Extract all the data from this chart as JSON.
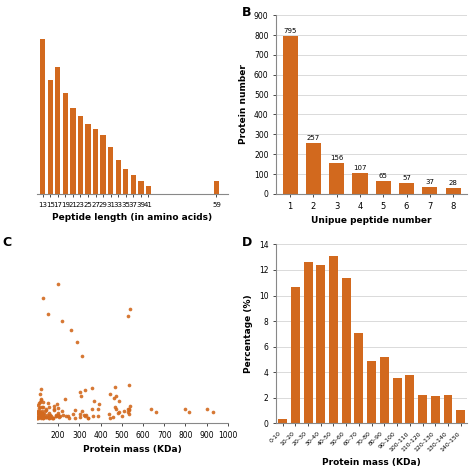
{
  "panel_A": {
    "xlabel": "Peptide length (in amino acids)",
    "bar_color": "#D2691E",
    "bar_x": [
      13,
      15,
      17,
      19,
      21,
      23,
      25,
      27,
      29,
      31,
      33,
      35,
      37,
      39,
      41,
      59
    ],
    "bar_heights": [
      1.0,
      0.73,
      0.82,
      0.65,
      0.55,
      0.5,
      0.45,
      0.42,
      0.38,
      0.3,
      0.22,
      0.16,
      0.12,
      0.08,
      0.05,
      0.08
    ],
    "tick_labels": [
      "13",
      "15",
      "17",
      "19",
      "21",
      "23",
      "25",
      "27",
      "29",
      "31",
      "33",
      "35",
      "37",
      "39",
      "41",
      "59"
    ]
  },
  "panel_B": {
    "label": "B",
    "xlabel": "Unipue peptide number",
    "ylabel": "Protein number",
    "bar_color": "#D2691E",
    "categories": [
      1,
      2,
      3,
      4,
      5,
      6,
      7,
      8
    ],
    "values": [
      795,
      257,
      156,
      107,
      65,
      57,
      37,
      28
    ],
    "ylim": [
      0,
      900
    ],
    "yticks": [
      0,
      100,
      200,
      300,
      400,
      500,
      600,
      700,
      800,
      900
    ]
  },
  "panel_C": {
    "label": "C",
    "xlabel": "Protein mass (KDa)",
    "dot_color": "#D2691E",
    "xticks": [
      200,
      300,
      400,
      500,
      600,
      700,
      800,
      900,
      1000
    ],
    "xlim": [
      100,
      1000
    ],
    "ylim": [
      0,
      80
    ]
  },
  "panel_D": {
    "label": "D",
    "xlabel": "Protein mass (KDa)",
    "ylabel": "Percentage (%)",
    "bar_color": "#D2691E",
    "categories": [
      "0-10",
      "10-20",
      "20-30",
      "30-40",
      "40-50",
      "50-60",
      "60-70",
      "70-80",
      "80-90",
      "90-100",
      "100-110",
      "110-120",
      "120-130",
      "130-140",
      "140-150"
    ],
    "values": [
      0.3,
      10.7,
      12.6,
      12.4,
      13.1,
      11.4,
      7.1,
      4.9,
      5.2,
      3.5,
      3.8,
      2.2,
      2.1,
      2.2,
      1.0
    ],
    "ylim": [
      0,
      14
    ],
    "yticks": [
      0,
      2,
      4,
      6,
      8,
      10,
      12,
      14
    ]
  },
  "bar_color": "#D2691E",
  "bg_color": "#FFFFFF",
  "grid_color": "#CCCCCC"
}
